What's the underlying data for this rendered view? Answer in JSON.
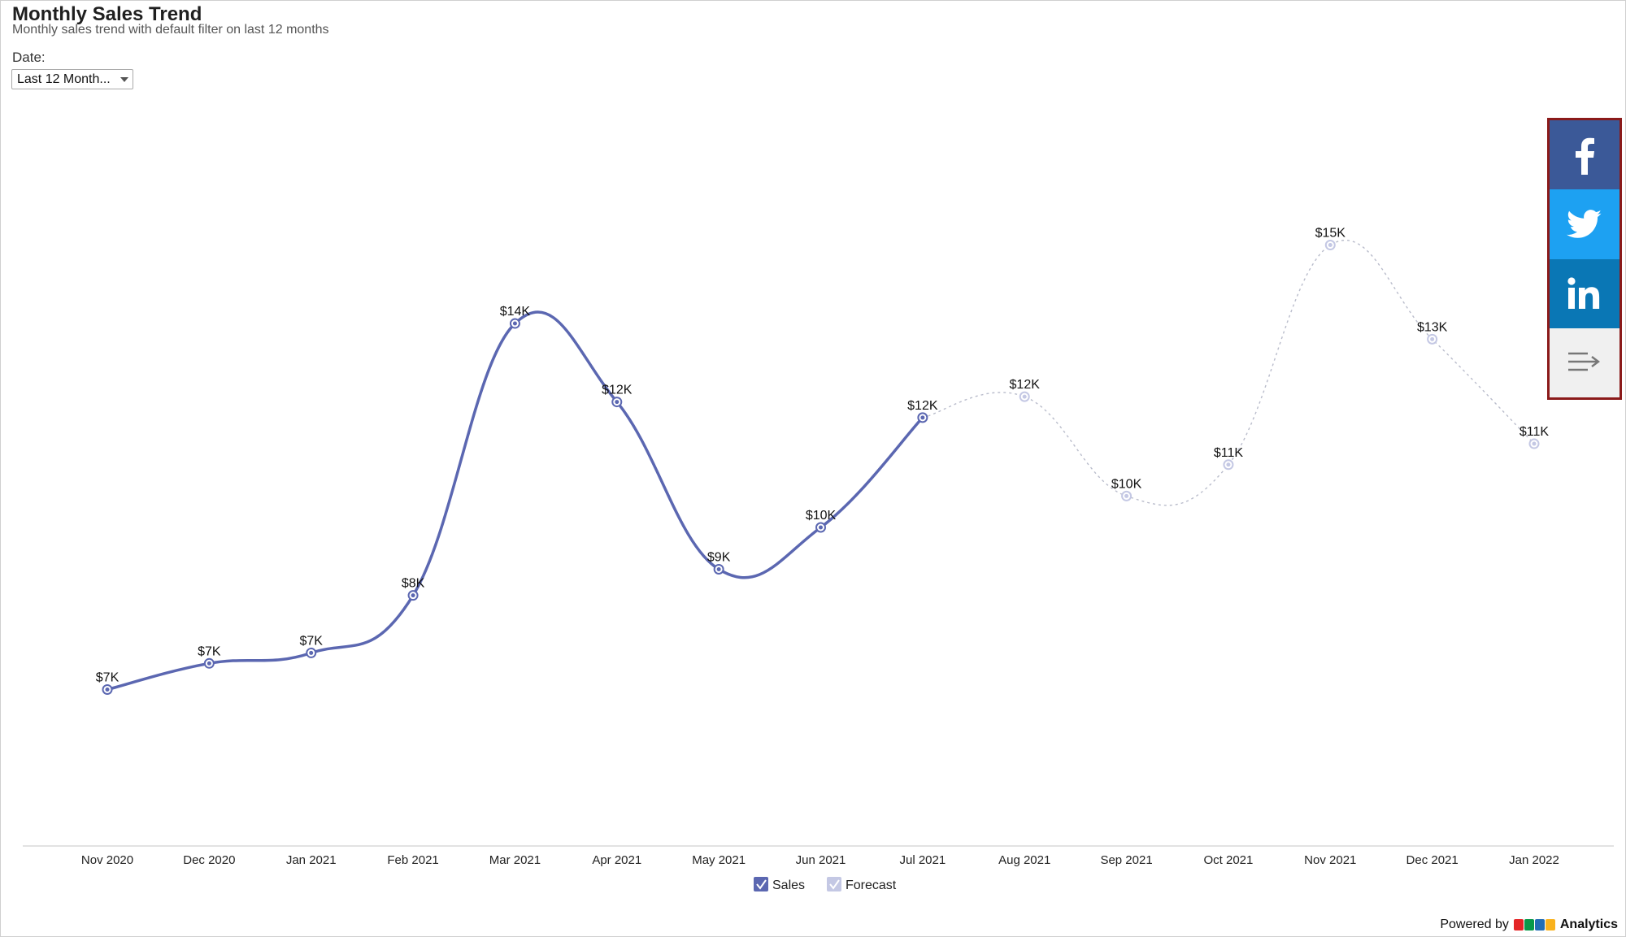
{
  "header": {
    "title": "Monthly Sales Trend",
    "subtitle": "Monthly sales trend with default filter on last 12 months"
  },
  "filter": {
    "label": "Date:",
    "selected": "Last 12 Month..."
  },
  "share": {
    "items": [
      {
        "name": "facebook",
        "icon": "facebook-icon"
      },
      {
        "name": "twitter",
        "icon": "twitter-icon"
      },
      {
        "name": "linkedin",
        "icon": "linkedin-icon"
      },
      {
        "name": "more",
        "icon": "share-menu-icon"
      }
    ]
  },
  "footer": {
    "powered_by": "Powered by",
    "brand": "ZOHO",
    "product": "Analytics",
    "brand_colors": [
      "#e42527",
      "#089949",
      "#226db4",
      "#f9b21d"
    ]
  },
  "chart_data": {
    "type": "line",
    "categories": [
      "Nov 2020",
      "Dec 2020",
      "Jan 2021",
      "Feb 2021",
      "Mar 2021",
      "Apr 2021",
      "May 2021",
      "Jun 2021",
      "Jul 2021",
      "Aug 2021",
      "Sep 2021",
      "Oct 2021",
      "Nov 2021",
      "Dec 2021",
      "Jan 2022"
    ],
    "series": [
      {
        "name": "Sales",
        "color": "#5b67b1",
        "style": "solid",
        "values": [
          6500,
          7000,
          7200,
          8300,
          13500,
          12000,
          8800,
          9600,
          11700,
          null,
          null,
          null,
          null,
          null,
          null
        ],
        "labels": [
          "$7K",
          "$7K",
          "$7K",
          "$8K",
          "$14K",
          "$12K",
          "$9K",
          "$10K",
          "$12K",
          "",
          "",
          "",
          "",
          "",
          ""
        ]
      },
      {
        "name": "Forecast",
        "color": "#c4c8e4",
        "style": "dotted",
        "values": [
          null,
          null,
          null,
          null,
          null,
          null,
          null,
          null,
          11700,
          12100,
          10200,
          10800,
          15000,
          13200,
          11200
        ],
        "labels": [
          "",
          "",
          "",
          "",
          "",
          "",
          "",
          "",
          "",
          "$12K",
          "$10K",
          "$11K",
          "$15K",
          "$13K",
          "$11K"
        ]
      }
    ],
    "ylim": [
      5000,
      16500
    ],
    "grid": false,
    "legend": "bottom-center"
  }
}
